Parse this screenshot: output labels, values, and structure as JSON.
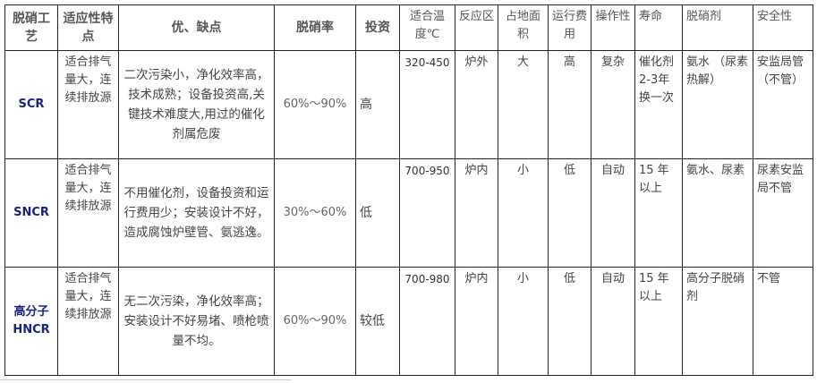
{
  "headers": [
    "脱硝工艺",
    "适应性特点",
    "优、缺点",
    "脱硝率",
    "投资",
    "适合温度℃",
    "反应区",
    "占地面积",
    "运行费用",
    "操作性",
    "寿命",
    "脱硝剂",
    "安全性"
  ],
  "rows": [
    {
      "method": "SCR",
      "fit": "适合排气量大，连续排放源",
      "pros_cons": "二次污染小，净化效率高，技术成熟；设备投资高,关键技术难度大,用过的催化剂属危废",
      "rate": "60%～90%",
      "investment": "高",
      "temperature": "320-450",
      "zone": "炉外",
      "area": "大",
      "cost": "高",
      "operation": "复杂",
      "life": "催化剂2-3年换一次",
      "agent": "氨水 （尿素热解）",
      "safety": "安监局管（不管）"
    },
    {
      "method": "SNCR",
      "fit": "适合排气量大，连续排放源",
      "pros_cons": "不用催化剂，设备投资和运行费用少；安装设计不好，造成腐蚀炉壁管、氨逃逸。",
      "rate": "30%～60%",
      "investment": "低",
      "temperature": "700-950",
      "zone": "炉内",
      "area": "小",
      "cost": "低",
      "operation": "自动",
      "life": "15 年以上",
      "agent": "氨水、尿素",
      "safety": "尿素安监局不管"
    },
    {
      "method": "高分子HNCR",
      "fit": "适合排气量大，连续排放源",
      "pros_cons": "无二次污染，净化效率高；安装设计不好易堵、喷枪喷量不均。",
      "rate": "60%～90%",
      "investment": "较低",
      "temperature": "700-980",
      "zone": "炉内",
      "area": "小",
      "cost": "低",
      "operation": "自动",
      "life": "15 年以上",
      "agent": "高分子脱硝剂",
      "safety": "不管"
    }
  ]
}
